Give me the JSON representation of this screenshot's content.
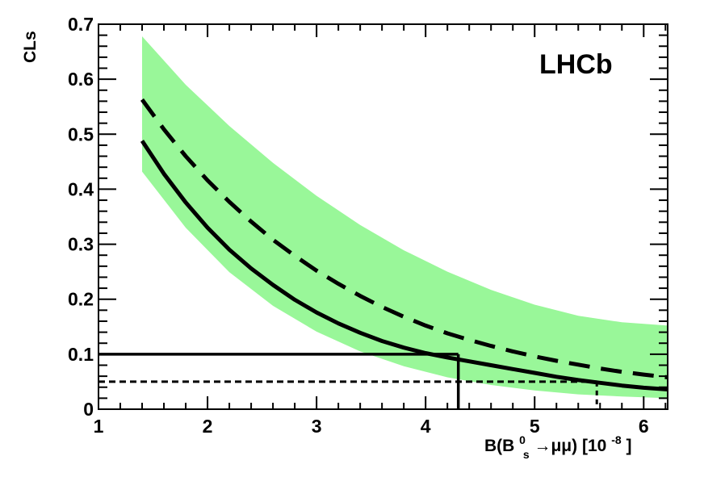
{
  "chart_data": {
    "type": "line",
    "title": "",
    "watermark": "LHCb",
    "ylabel": "CLs",
    "xlabel": {
      "prefix": "B(B",
      "superscript": "0",
      "subscript": "s",
      "arrow": "→μμ) [10",
      "exp": "-8",
      "suffix": "]"
    },
    "xlim": [
      1,
      6.22
    ],
    "ylim": [
      0,
      0.7
    ],
    "x_ticks": [
      "1",
      "2",
      "3",
      "4",
      "5",
      "6"
    ],
    "y_ticks": [
      "0",
      "0.1",
      "0.2",
      "0.3",
      "0.4",
      "0.5",
      "0.6",
      "0.7"
    ],
    "x_tick_values": [
      1,
      2,
      3,
      4,
      5,
      6
    ],
    "y_tick_values": [
      0,
      0.1,
      0.2,
      0.3,
      0.4,
      0.5,
      0.6,
      0.7
    ],
    "band": {
      "color": "#99f799",
      "x": [
        1.4,
        1.8,
        2.2,
        2.6,
        3.0,
        3.4,
        3.8,
        4.2,
        4.6,
        5.0,
        5.4,
        5.8,
        6.22
      ],
      "upper": [
        0.678,
        0.59,
        0.515,
        0.448,
        0.388,
        0.335,
        0.289,
        0.25,
        0.217,
        0.19,
        0.17,
        0.158,
        0.152
      ],
      "lower": [
        0.432,
        0.33,
        0.249,
        0.188,
        0.141,
        0.105,
        0.078,
        0.058,
        0.044,
        0.034,
        0.027,
        0.023,
        0.02
      ]
    },
    "series": [
      {
        "style": "solid",
        "color": "#000000",
        "x": [
          1.4,
          1.6,
          1.8,
          2.0,
          2.2,
          2.4,
          2.6,
          2.8,
          3.0,
          3.2,
          3.4,
          3.6,
          3.8,
          4.0,
          4.2,
          4.4,
          4.6,
          4.8,
          5.0,
          5.2,
          5.4,
          5.6,
          5.8,
          6.0,
          6.22
        ],
        "values": [
          0.488,
          0.428,
          0.376,
          0.33,
          0.29,
          0.256,
          0.226,
          0.199,
          0.176,
          0.156,
          0.139,
          0.124,
          0.112,
          0.102,
          0.094,
          0.087,
          0.08,
          0.073,
          0.066,
          0.059,
          0.053,
          0.048,
          0.043,
          0.039,
          0.036
        ]
      },
      {
        "style": "dashed",
        "color": "#000000",
        "x": [
          1.4,
          1.6,
          1.8,
          2.0,
          2.2,
          2.4,
          2.6,
          2.8,
          3.0,
          3.2,
          3.4,
          3.6,
          3.8,
          4.0,
          4.2,
          4.4,
          4.6,
          4.8,
          5.0,
          5.2,
          5.4,
          5.6,
          5.8,
          6.0,
          6.22
        ],
        "values": [
          0.563,
          0.509,
          0.46,
          0.416,
          0.377,
          0.341,
          0.308,
          0.279,
          0.252,
          0.228,
          0.206,
          0.186,
          0.168,
          0.152,
          0.138,
          0.126,
          0.115,
          0.105,
          0.096,
          0.088,
          0.081,
          0.074,
          0.068,
          0.063,
          0.058
        ]
      }
    ],
    "reference_lines": [
      {
        "style": "solid",
        "y": 0.1,
        "x_end": 4.3
      },
      {
        "style": "dotted",
        "y": 0.05,
        "x_end": 5.57
      }
    ]
  }
}
